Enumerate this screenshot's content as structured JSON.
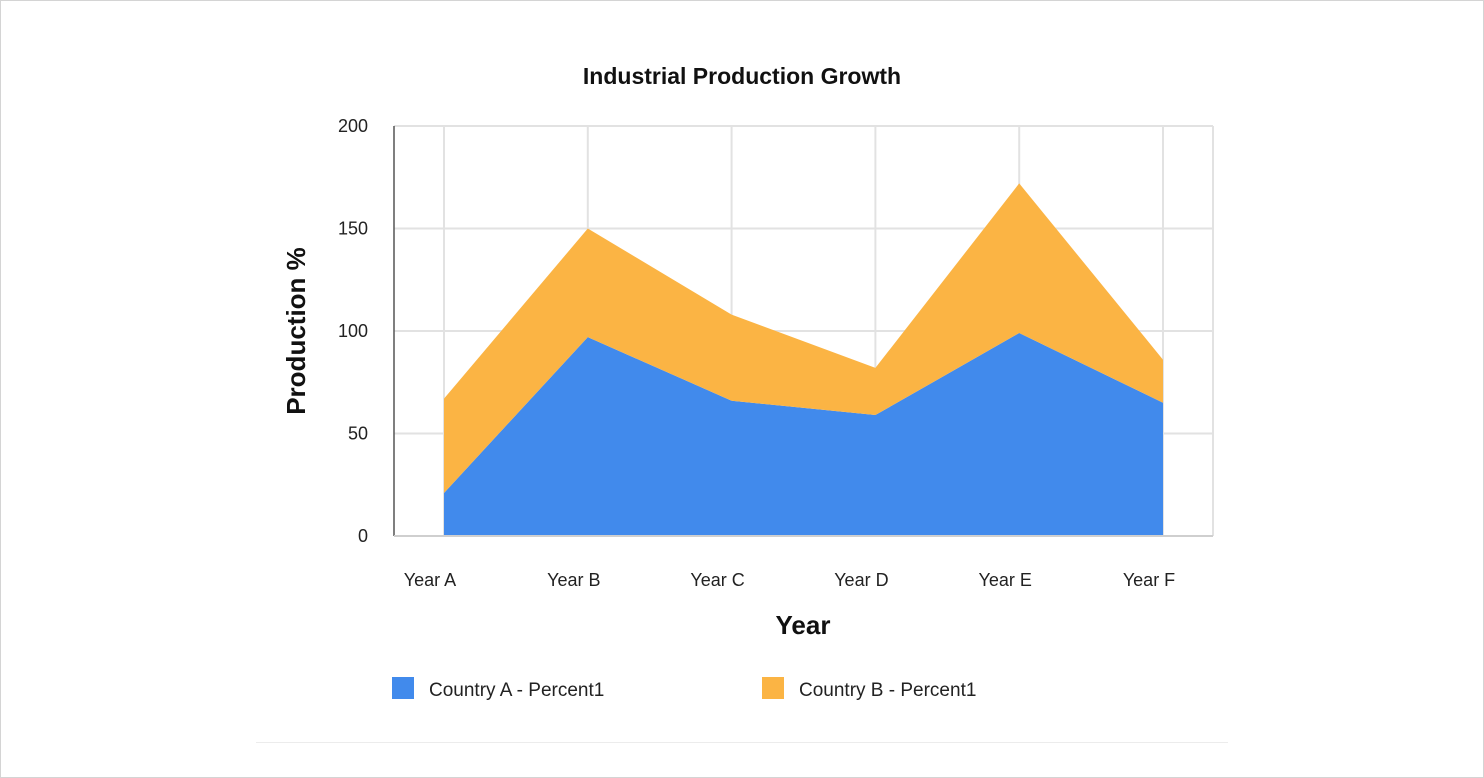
{
  "chart_data": {
    "type": "area",
    "stacked": true,
    "title": "Industrial Production Growth",
    "xlabel": "Year",
    "ylabel": "Production %",
    "categories": [
      "Year A",
      "Year B",
      "Year C",
      "Year D",
      "Year E",
      "Year F"
    ],
    "ylim": [
      0,
      200
    ],
    "yticks": [
      0,
      50,
      100,
      150,
      200
    ],
    "grid": true,
    "legend_position": "bottom-left",
    "series": [
      {
        "name": "Country A - Percent1",
        "color": "#418aec",
        "values": [
          21,
          97,
          66,
          59,
          99,
          65
        ]
      },
      {
        "name": "Country B - Percent1",
        "color": "#fbb444",
        "values": [
          46,
          53,
          42,
          23,
          73,
          21
        ]
      }
    ]
  }
}
